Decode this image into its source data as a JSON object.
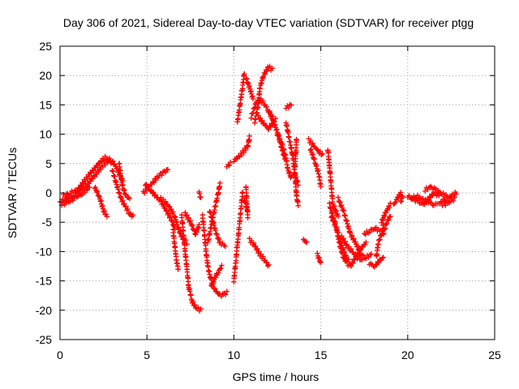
{
  "chart_data": {
    "type": "scatter",
    "title": "Day 306 of 2021, Sidereal Day-to-day VTEC variation (SDTVAR) for receiver ptgg",
    "xlabel": "GPS time / hours",
    "ylabel": "SDTVAR / TECUs",
    "xlim": [
      0,
      25
    ],
    "ylim": [
      -25,
      25
    ],
    "xticks": [
      0,
      5,
      10,
      15,
      20,
      25
    ],
    "yticks": [
      -25,
      -20,
      -15,
      -10,
      -5,
      0,
      5,
      10,
      15,
      20,
      25
    ],
    "grid": true,
    "marker": "+",
    "color": "#ff0000",
    "series": [
      {
        "name": "SDTVAR",
        "tracks": [
          [
            [
              0.0,
              -1.5
            ],
            [
              0.4,
              -1.0
            ],
            [
              0.8,
              -0.5
            ],
            [
              1.2,
              0.5
            ],
            [
              1.6,
              1.5
            ],
            [
              2.0,
              3.0
            ],
            [
              2.4,
              4.5
            ],
            [
              2.8,
              5.5
            ],
            [
              3.0,
              5.0
            ]
          ],
          [
            [
              0.2,
              -0.5
            ],
            [
              0.6,
              0.0
            ],
            [
              1.0,
              0.5
            ],
            [
              1.4,
              2.0
            ],
            [
              1.8,
              3.5
            ],
            [
              2.2,
              5.0
            ],
            [
              2.6,
              6.0
            ],
            [
              3.0,
              5.5
            ],
            [
              3.3,
              4.0
            ],
            [
              3.6,
              2.0
            ]
          ],
          [
            [
              0.1,
              -2.0
            ],
            [
              0.5,
              -1.5
            ],
            [
              0.9,
              -0.8
            ],
            [
              1.3,
              0.0
            ],
            [
              1.7,
              1.0
            ]
          ],
          [
            [
              2.0,
              1.0
            ],
            [
              2.3,
              -1.0
            ],
            [
              2.5,
              -3.0
            ],
            [
              2.7,
              -4.0
            ]
          ],
          [
            [
              3.0,
              4.0
            ],
            [
              3.2,
              2.0
            ],
            [
              3.4,
              0.0
            ],
            [
              3.6,
              -1.5
            ],
            [
              3.8,
              -2.5
            ],
            [
              4.0,
              -3.5
            ],
            [
              4.2,
              -4.0
            ]
          ],
          [
            [
              3.4,
              5.0
            ],
            [
              3.5,
              3.0
            ],
            [
              3.6,
              1.0
            ],
            [
              3.8,
              -0.5
            ],
            [
              4.0,
              -1.0
            ]
          ],
          [
            [
              4.8,
              0.0
            ],
            [
              5.1,
              1.0
            ],
            [
              5.4,
              2.0
            ],
            [
              5.7,
              3.0
            ],
            [
              6.0,
              3.5
            ],
            [
              6.2,
              4.0
            ]
          ],
          [
            [
              4.9,
              1.5
            ],
            [
              5.2,
              0.5
            ],
            [
              5.5,
              -0.5
            ],
            [
              5.8,
              -1.5
            ],
            [
              6.1,
              -3.0
            ],
            [
              6.4,
              -4.5
            ],
            [
              6.6,
              -6.0
            ]
          ],
          [
            [
              5.8,
              -1.0
            ],
            [
              6.2,
              -2.0
            ],
            [
              6.6,
              -4.0
            ],
            [
              6.8,
              -6.0
            ],
            [
              7.0,
              -7.5
            ],
            [
              7.3,
              -8.5
            ]
          ],
          [
            [
              6.5,
              -6.5
            ],
            [
              6.6,
              -9.0
            ],
            [
              6.7,
              -11.5
            ],
            [
              6.8,
              -13.0
            ]
          ],
          [
            [
              7.0,
              -4.0
            ],
            [
              7.1,
              -7.0
            ],
            [
              7.2,
              -10.0
            ],
            [
              7.3,
              -13.0
            ],
            [
              7.4,
              -16.0
            ],
            [
              7.6,
              -18.5
            ],
            [
              7.8,
              -19.5
            ],
            [
              8.1,
              -20.0
            ]
          ],
          [
            [
              7.2,
              -3.5
            ],
            [
              7.5,
              -5.0
            ],
            [
              7.8,
              -7.0
            ],
            [
              8.0,
              -5.5
            ]
          ],
          [
            [
              8.2,
              -4.0
            ],
            [
              8.3,
              -7.0
            ],
            [
              8.4,
              -10.0
            ],
            [
              8.5,
              -12.5
            ],
            [
              8.7,
              -15.0
            ],
            [
              8.9,
              -16.5
            ],
            [
              9.2,
              -17.5
            ],
            [
              9.6,
              -17.0
            ]
          ],
          [
            [
              8.6,
              -3.0
            ],
            [
              8.8,
              -5.0
            ],
            [
              9.0,
              -7.0
            ],
            [
              9.2,
              -8.5
            ],
            [
              9.5,
              -9.0
            ]
          ],
          [
            [
              8.0,
              0.0
            ],
            [
              8.1,
              -1.0
            ]
          ],
          [
            [
              8.7,
              -16.0
            ],
            [
              8.9,
              -14.5
            ],
            [
              9.1,
              -13.5
            ],
            [
              9.3,
              -12.5
            ]
          ],
          [
            [
              8.5,
              -8.5
            ],
            [
              8.8,
              -4.0
            ],
            [
              9.1,
              0.0
            ],
            [
              9.2,
              1.5
            ]
          ],
          [
            [
              9.6,
              4.5
            ],
            [
              9.8,
              5.0
            ]
          ],
          [
            [
              10.0,
              -15.0
            ],
            [
              10.1,
              -12.0
            ],
            [
              10.2,
              -9.0
            ],
            [
              10.3,
              -6.0
            ],
            [
              10.4,
              -3.0
            ],
            [
              10.5,
              0.0
            ]
          ],
          [
            [
              10.6,
              -1.0
            ],
            [
              10.8,
              -3.0
            ]
          ],
          [
            [
              10.7,
              1.0
            ],
            [
              10.75,
              -2.0
            ],
            [
              10.8,
              -4.0
            ]
          ],
          [
            [
              10.0,
              5.5
            ],
            [
              10.4,
              6.5
            ],
            [
              10.8,
              8.0
            ],
            [
              10.9,
              9.5
            ]
          ],
          [
            [
              10.9,
              -8.0
            ],
            [
              11.2,
              -9.0
            ],
            [
              11.5,
              -10.5
            ],
            [
              11.8,
              -11.5
            ],
            [
              12.0,
              -12.5
            ]
          ],
          [
            [
              10.2,
              12.0
            ],
            [
              10.3,
              14.0
            ],
            [
              10.4,
              16.0
            ],
            [
              10.5,
              18.0
            ],
            [
              10.6,
              20.5
            ]
          ],
          [
            [
              10.7,
              19.5
            ],
            [
              10.9,
              18.0
            ],
            [
              11.1,
              16.0
            ]
          ],
          [
            [
              11.2,
              12.0
            ],
            [
              11.4,
              15.0
            ],
            [
              11.5,
              18.0
            ],
            [
              11.7,
              20.0
            ],
            [
              12.0,
              21.5
            ],
            [
              12.2,
              21.0
            ]
          ],
          [
            [
              11.0,
              13.0
            ],
            [
              11.3,
              15.5
            ],
            [
              11.5,
              16.0
            ],
            [
              11.8,
              15.0
            ],
            [
              12.0,
              14.0
            ],
            [
              12.2,
              13.0
            ]
          ],
          [
            [
              11.4,
              13.0
            ],
            [
              11.8,
              11.5
            ],
            [
              12.0,
              11.0
            ],
            [
              12.4,
              12.5
            ]
          ],
          [
            [
              12.0,
              14.0
            ],
            [
              12.3,
              12.0
            ],
            [
              12.6,
              9.5
            ],
            [
              12.8,
              7.0
            ],
            [
              13.0,
              5.5
            ]
          ],
          [
            [
              12.5,
              10.0
            ],
            [
              12.8,
              8.0
            ],
            [
              13.0,
              6.0
            ],
            [
              13.1,
              4.0
            ],
            [
              13.3,
              2.5
            ]
          ],
          [
            [
              13.0,
              12.0
            ],
            [
              13.2,
              9.0
            ],
            [
              13.4,
              6.0
            ],
            [
              13.5,
              3.0
            ],
            [
              13.7,
              1.5
            ]
          ],
          [
            [
              13.0,
              14.5
            ],
            [
              13.3,
              15.0
            ]
          ],
          [
            [
              13.6,
              9.0
            ],
            [
              13.5,
              4.0
            ],
            [
              13.6,
              -0.5
            ],
            [
              13.7,
              -2.0
            ]
          ],
          [
            [
              14.3,
              9.0
            ],
            [
              14.6,
              8.0
            ],
            [
              14.9,
              7.0
            ],
            [
              15.1,
              6.5
            ]
          ],
          [
            [
              14.4,
              7.5
            ],
            [
              14.7,
              5.0
            ],
            [
              14.9,
              3.0
            ],
            [
              15.0,
              1.0
            ]
          ],
          [
            [
              14.0,
              -8.0
            ],
            [
              14.2,
              -8.5
            ]
          ],
          [
            [
              14.8,
              -10.5
            ],
            [
              15.0,
              -12.0
            ]
          ],
          [
            [
              15.4,
              7.5
            ],
            [
              15.5,
              4.5
            ],
            [
              15.6,
              1.0
            ],
            [
              15.7,
              -2.0
            ],
            [
              16.0,
              -4.0
            ]
          ],
          [
            [
              15.5,
              -2.0
            ],
            [
              15.8,
              -5.0
            ],
            [
              16.0,
              -7.0
            ],
            [
              16.2,
              -9.0
            ],
            [
              16.4,
              -10.5
            ],
            [
              16.6,
              -11.5
            ]
          ],
          [
            [
              15.6,
              -4.0
            ],
            [
              15.9,
              -6.0
            ],
            [
              16.1,
              -9.0
            ],
            [
              16.3,
              -11.0
            ],
            [
              16.5,
              -12.0
            ],
            [
              16.7,
              -12.5
            ],
            [
              17.0,
              -11.0
            ],
            [
              17.3,
              -9.5
            ],
            [
              17.6,
              -8.5
            ]
          ],
          [
            [
              16.0,
              -1.0
            ],
            [
              16.3,
              -3.0
            ],
            [
              16.5,
              -5.0
            ],
            [
              16.7,
              -7.0
            ],
            [
              17.0,
              -8.5
            ],
            [
              17.3,
              -10.5
            ],
            [
              17.6,
              -11.0
            ],
            [
              17.9,
              -10.5
            ]
          ],
          [
            [
              16.2,
              -7.5
            ],
            [
              16.5,
              -9.0
            ],
            [
              16.8,
              -10.0
            ],
            [
              17.1,
              -11.0
            ],
            [
              17.4,
              -11.5
            ]
          ],
          [
            [
              17.5,
              -7.0
            ],
            [
              17.8,
              -6.5
            ],
            [
              18.1,
              -6.0
            ],
            [
              18.4,
              -6.5
            ]
          ],
          [
            [
              17.8,
              -12.0
            ],
            [
              18.1,
              -12.5
            ],
            [
              18.4,
              -11.5
            ],
            [
              18.6,
              -11.0
            ]
          ],
          [
            [
              18.2,
              -11.0
            ],
            [
              18.3,
              -8.5
            ],
            [
              18.5,
              -7.0
            ],
            [
              18.6,
              -5.5
            ]
          ],
          [
            [
              18.5,
              -5.0
            ],
            [
              18.7,
              -3.5
            ],
            [
              18.9,
              -2.5
            ],
            [
              19.0,
              -2.0
            ]
          ],
          [
            [
              18.6,
              -7.0
            ],
            [
              18.8,
              -5.0
            ],
            [
              19.0,
              -4.0
            ]
          ],
          [
            [
              19.2,
              -2.0
            ],
            [
              19.4,
              -1.0
            ],
            [
              19.6,
              0.0
            ]
          ],
          [
            [
              19.6,
              -1.5
            ],
            [
              19.7,
              -0.5
            ]
          ],
          [
            [
              20.0,
              -0.5
            ],
            [
              20.3,
              -1.0
            ],
            [
              20.6,
              -1.5
            ],
            [
              20.9,
              -2.0
            ],
            [
              21.2,
              -1.0
            ],
            [
              21.5,
              0.0
            ],
            [
              21.8,
              -0.5
            ]
          ],
          [
            [
              20.2,
              -1.0
            ],
            [
              20.5,
              -0.5
            ],
            [
              20.8,
              -1.0
            ],
            [
              21.1,
              -1.5
            ]
          ],
          [
            [
              21.0,
              0.5
            ],
            [
              21.3,
              1.0
            ],
            [
              21.6,
              0.5
            ],
            [
              21.9,
              0.0
            ],
            [
              22.2,
              -0.5
            ]
          ],
          [
            [
              21.2,
              -1.5
            ],
            [
              21.5,
              -2.0
            ],
            [
              21.8,
              -2.0
            ],
            [
              22.1,
              -2.0
            ],
            [
              22.4,
              -1.5
            ],
            [
              22.7,
              -1.0
            ]
          ],
          [
            [
              21.9,
              -1.5
            ],
            [
              22.2,
              -1.0
            ],
            [
              22.5,
              -0.5
            ],
            [
              22.8,
              0.0
            ]
          ]
        ]
      }
    ]
  }
}
